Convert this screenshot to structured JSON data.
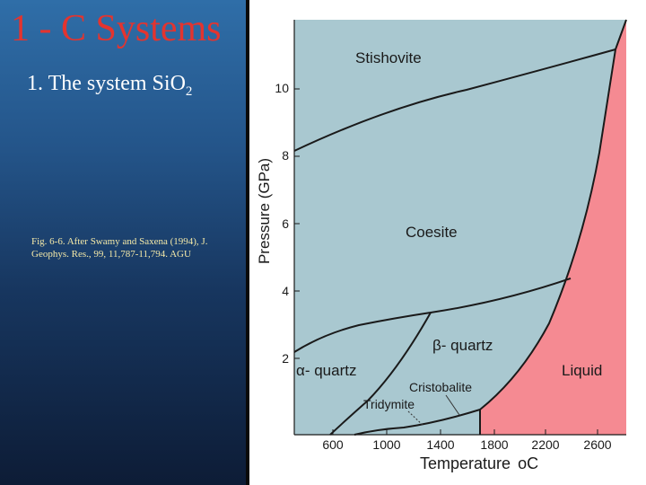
{
  "slide": {
    "title": "1 - C Systems",
    "subtitle_main": "1. The system Si",
    "subtitle_o": "O",
    "subtitle_sub": "2",
    "caption": "Fig. 6-6. After Swamy and Saxena (1994), J. Geophys. Res., 99, 11,787-11,794. AGU"
  },
  "diagram": {
    "y_axis_label": "Pressure (GPa)",
    "x_axis_label": "Temperature",
    "x_axis_unit": "oC",
    "x_ticks": [
      "600",
      "1000",
      "1400",
      "1800",
      "2200",
      "2600"
    ],
    "y_ticks": [
      "2",
      "4",
      "6",
      "8",
      "10"
    ],
    "x_range": [
      260,
      3000
    ],
    "y_range": [
      0,
      12
    ],
    "fields": {
      "stishovite": "Stishovite",
      "coesite": "Coesite",
      "beta_quartz": "β- quartz",
      "alpha_quartz": "α- quartz",
      "cristobalite": "Cristobalite",
      "tridymite": "Tridymite",
      "liquid": "Liquid"
    },
    "colors": {
      "solid": "#a9c8d0",
      "liquid": "#f58a92",
      "line": "#1a1a1a"
    }
  }
}
